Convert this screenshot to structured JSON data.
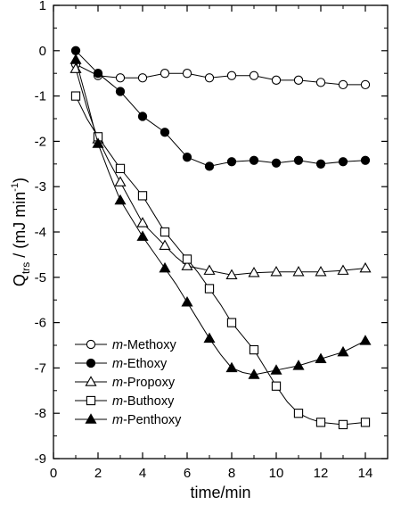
{
  "chart_data": {
    "type": "line",
    "xlabel": "time/min",
    "ylabel": {
      "main": "Q",
      "sub": "trs",
      "unit": " / (mJ min",
      "sup": "-1",
      "close": ")"
    },
    "xlim": [
      0,
      15
    ],
    "ylim": [
      -9,
      1
    ],
    "xticks": [
      0,
      2,
      4,
      6,
      8,
      10,
      12,
      14
    ],
    "yticks": [
      1,
      0,
      -1,
      -2,
      -3,
      -4,
      -5,
      -6,
      -7,
      -8,
      -9
    ],
    "grid": false,
    "legend_position": "bottom-left",
    "series": [
      {
        "name": "Methoxy",
        "prefix": "m",
        "marker": "circle",
        "filled": false,
        "points": [
          [
            1,
            -0.3
          ],
          [
            2,
            -0.55
          ],
          [
            3,
            -0.6
          ],
          [
            4,
            -0.6
          ],
          [
            5,
            -0.5
          ],
          [
            6,
            -0.5
          ],
          [
            7,
            -0.6
          ],
          [
            8,
            -0.55
          ],
          [
            9,
            -0.55
          ],
          [
            10,
            -0.65
          ],
          [
            11,
            -0.65
          ],
          [
            12,
            -0.7
          ],
          [
            13,
            -0.75
          ],
          [
            14,
            -0.75
          ]
        ],
        "curve": [
          [
            1,
            -0.3
          ],
          [
            2,
            -0.55
          ],
          [
            3,
            -0.6
          ],
          [
            4,
            -0.6
          ],
          [
            5,
            -0.5
          ],
          [
            6,
            -0.5
          ],
          [
            7,
            -0.6
          ],
          [
            8,
            -0.55
          ],
          [
            9,
            -0.55
          ],
          [
            10,
            -0.65
          ],
          [
            11,
            -0.65
          ],
          [
            12,
            -0.7
          ],
          [
            13,
            -0.75
          ],
          [
            14,
            -0.75
          ]
        ]
      },
      {
        "name": "Ethoxy",
        "prefix": "m",
        "marker": "circle",
        "filled": true,
        "points": [
          [
            1,
            0.0
          ],
          [
            2,
            -0.5
          ],
          [
            3,
            -0.9
          ],
          [
            4,
            -1.45
          ],
          [
            5,
            -1.8
          ],
          [
            6,
            -2.35
          ],
          [
            7,
            -2.55
          ],
          [
            8,
            -2.45
          ],
          [
            9,
            -2.42
          ],
          [
            10,
            -2.48
          ],
          [
            11,
            -2.42
          ],
          [
            12,
            -2.5
          ],
          [
            13,
            -2.45
          ],
          [
            14,
            -2.42
          ]
        ],
        "curve": [
          [
            1,
            0.0
          ],
          [
            2,
            -0.5
          ],
          [
            3,
            -0.9
          ],
          [
            4,
            -1.45
          ],
          [
            5,
            -1.8
          ],
          [
            6,
            -2.35
          ],
          [
            7,
            -2.55
          ],
          [
            8,
            -2.45
          ],
          [
            9,
            -2.42
          ],
          [
            10,
            -2.48
          ],
          [
            11,
            -2.42
          ],
          [
            12,
            -2.5
          ],
          [
            13,
            -2.45
          ],
          [
            14,
            -2.42
          ]
        ]
      },
      {
        "name": "Propoxy",
        "prefix": "m",
        "marker": "triangle",
        "filled": false,
        "points": [
          [
            1,
            -0.4
          ],
          [
            2,
            -1.95
          ],
          [
            3,
            -2.9
          ],
          [
            4,
            -3.8
          ],
          [
            5,
            -4.3
          ],
          [
            6,
            -4.75
          ],
          [
            7,
            -4.85
          ],
          [
            8,
            -4.95
          ],
          [
            9,
            -4.9
          ],
          [
            10,
            -4.88
          ],
          [
            11,
            -4.88
          ],
          [
            12,
            -4.88
          ],
          [
            13,
            -4.85
          ],
          [
            14,
            -4.8
          ]
        ],
        "curve": [
          [
            1,
            -0.4
          ],
          [
            1.5,
            -1.25
          ],
          [
            2,
            -1.95
          ],
          [
            2.5,
            -2.45
          ],
          [
            3,
            -2.9
          ],
          [
            3.5,
            -3.35
          ],
          [
            4,
            -3.8
          ],
          [
            4.5,
            -4.05
          ],
          [
            5,
            -4.3
          ],
          [
            5.5,
            -4.55
          ],
          [
            6,
            -4.75
          ],
          [
            6.5,
            -4.8
          ],
          [
            7,
            -4.85
          ],
          [
            7.5,
            -4.9
          ],
          [
            8,
            -4.95
          ],
          [
            9,
            -4.9
          ],
          [
            10,
            -4.88
          ],
          [
            11,
            -4.88
          ],
          [
            12,
            -4.88
          ],
          [
            13,
            -4.85
          ],
          [
            14,
            -4.8
          ]
        ]
      },
      {
        "name": "Buthoxy",
        "prefix": "m",
        "marker": "square",
        "filled": false,
        "points": [
          [
            1,
            -1.0
          ],
          [
            2,
            -1.9
          ],
          [
            3,
            -2.6
          ],
          [
            4,
            -3.2
          ],
          [
            5,
            -4.0
          ],
          [
            6,
            -4.6
          ],
          [
            7,
            -5.25
          ],
          [
            8,
            -6.0
          ],
          [
            9,
            -6.6
          ],
          [
            10,
            -7.4
          ],
          [
            11,
            -8.0
          ],
          [
            12,
            -8.2
          ],
          [
            13,
            -8.25
          ],
          [
            14,
            -8.2
          ]
        ],
        "curve": [
          [
            1,
            -1.0
          ],
          [
            1.5,
            -1.5
          ],
          [
            2,
            -1.9
          ],
          [
            2.5,
            -2.25
          ],
          [
            3,
            -2.6
          ],
          [
            3.5,
            -2.9
          ],
          [
            4,
            -3.2
          ],
          [
            4.5,
            -3.6
          ],
          [
            5,
            -4.0
          ],
          [
            5.5,
            -4.3
          ],
          [
            6,
            -4.6
          ],
          [
            6.5,
            -4.9
          ],
          [
            7,
            -5.25
          ],
          [
            7.5,
            -5.6
          ],
          [
            8,
            -6.0
          ],
          [
            8.5,
            -6.3
          ],
          [
            9,
            -6.6
          ],
          [
            9.5,
            -7.0
          ],
          [
            10,
            -7.4
          ],
          [
            10.5,
            -7.75
          ],
          [
            11,
            -8.0
          ],
          [
            11.5,
            -8.12
          ],
          [
            12,
            -8.2
          ],
          [
            13,
            -8.25
          ],
          [
            14,
            -8.2
          ]
        ]
      },
      {
        "name": "Penthoxy",
        "prefix": "m",
        "marker": "triangle",
        "filled": true,
        "points": [
          [
            1,
            -0.2
          ],
          [
            2,
            -2.05
          ],
          [
            3,
            -3.3
          ],
          [
            4,
            -4.1
          ],
          [
            5,
            -4.8
          ],
          [
            6,
            -5.55
          ],
          [
            7,
            -6.35
          ],
          [
            8,
            -7.0
          ],
          [
            9,
            -7.15
          ],
          [
            10,
            -7.05
          ],
          [
            11,
            -6.95
          ],
          [
            12,
            -6.8
          ],
          [
            13,
            -6.65
          ],
          [
            14,
            -6.4
          ]
        ],
        "curve": [
          [
            1,
            -0.2
          ],
          [
            1.5,
            -1.1
          ],
          [
            2,
            -2.05
          ],
          [
            2.5,
            -2.7
          ],
          [
            3,
            -3.3
          ],
          [
            3.5,
            -3.7
          ],
          [
            4,
            -4.1
          ],
          [
            4.5,
            -4.45
          ],
          [
            5,
            -4.8
          ],
          [
            5.5,
            -5.15
          ],
          [
            6,
            -5.55
          ],
          [
            6.5,
            -5.95
          ],
          [
            7,
            -6.35
          ],
          [
            7.5,
            -6.7
          ],
          [
            8,
            -7.0
          ],
          [
            8.5,
            -7.1
          ],
          [
            9,
            -7.15
          ],
          [
            9.5,
            -7.1
          ],
          [
            10,
            -7.05
          ],
          [
            11,
            -6.95
          ],
          [
            12,
            -6.8
          ],
          [
            13,
            -6.65
          ],
          [
            14,
            -6.4
          ]
        ]
      }
    ]
  }
}
